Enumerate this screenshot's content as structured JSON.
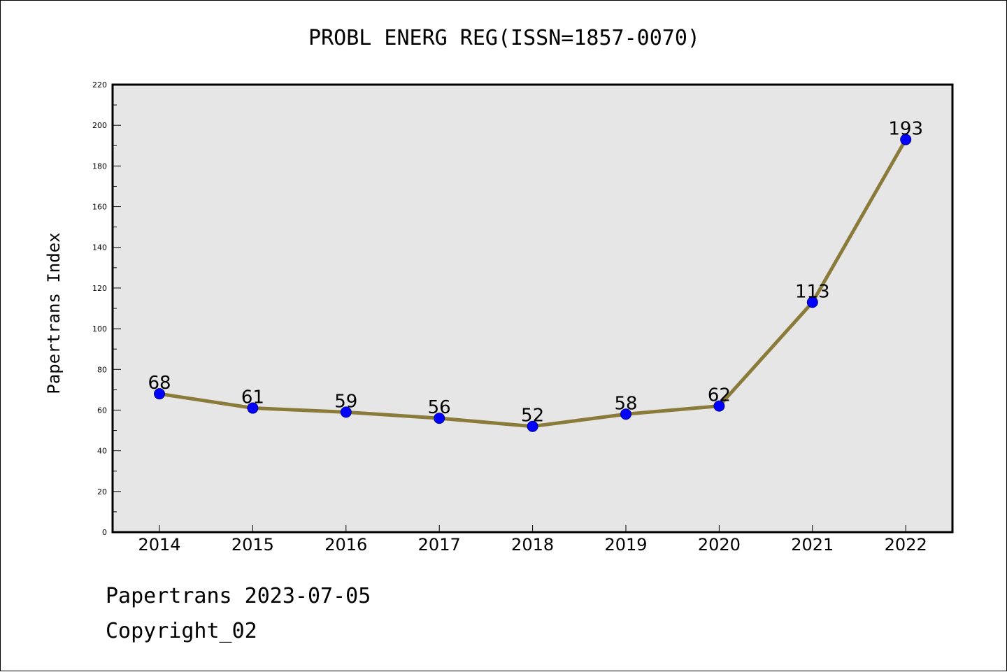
{
  "chart_data": {
    "type": "line",
    "title": "PROBL ENERG REG(ISSN=1857-0070)",
    "ylabel": "Papertrans Index",
    "xlabel": "",
    "categories": [
      "2014",
      "2015",
      "2016",
      "2017",
      "2018",
      "2019",
      "2020",
      "2021",
      "2022"
    ],
    "series": [
      {
        "values": [
          68,
          61,
          59,
          56,
          52,
          58,
          62,
          113,
          193
        ]
      }
    ],
    "data_labels": [
      "68",
      "61",
      "59",
      "56",
      "52",
      "58",
      "62",
      "113",
      "193"
    ],
    "ylim": [
      0,
      220
    ],
    "yticks": [
      0,
      20,
      40,
      60,
      80,
      100,
      120,
      140,
      160,
      180,
      200,
      220
    ],
    "grid": false,
    "legend": "none",
    "colors": {
      "line": "#8b7b3a",
      "marker": "#0000ff",
      "marker_edge": "#00008b",
      "plot_background": "#e6e6e6"
    }
  },
  "footer": {
    "date_line": "Papertrans 2023-07-05",
    "copyright_line": "Copyright_02"
  }
}
